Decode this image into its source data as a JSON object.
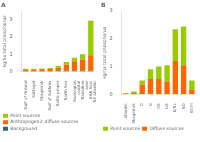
{
  "chart_data": [
    {
      "type": "bar",
      "stacked": true,
      "title": "A",
      "ylabel": "kg/ha total phosphorus",
      "categories": [
        "Gulf of Finland",
        "Kattegat",
        "Skagerrak",
        "Gulf of Bothnia",
        "Baltic proper",
        "North Sea",
        "Norwegian\ncoastal",
        "Transition\nzone",
        "Irish Sea/\nNE Atlantic"
      ],
      "series": [
        {
          "name": "Background",
          "color": "#336666",
          "values": [
            0.03,
            0.03,
            0.03,
            0.03,
            0.04,
            0.05,
            0.05,
            0.05,
            0.05
          ]
        },
        {
          "name": "Anthropogenic diffuse sources",
          "color": "#ff6600",
          "values": [
            0.08,
            0.08,
            0.1,
            0.12,
            0.18,
            0.35,
            0.55,
            0.65,
            0.9
          ]
        },
        {
          "name": "Point sources",
          "color": "#99cc00",
          "values": [
            0.05,
            0.05,
            0.05,
            0.05,
            0.1,
            0.15,
            0.2,
            0.3,
            2.0
          ]
        }
      ],
      "ylim": [
        0,
        3.5
      ],
      "yticks": [
        0,
        1,
        2,
        3
      ],
      "grid": false,
      "legend": "bottom"
    },
    {
      "type": "bar",
      "stacked": true,
      "title": "B",
      "ylabel": "kg/ha total phosphorus",
      "categories": [
        "Atlantic",
        "Skagerrak",
        "D",
        "N",
        "DK",
        "UK",
        "B/NL",
        "NO",
        "SE/FI"
      ],
      "series": [
        {
          "name": "Diffuse sources",
          "color": "#ff6600",
          "values": [
            0.03,
            0.05,
            0.35,
            0.55,
            0.55,
            0.45,
            1.2,
            1.05,
            0.15
          ]
        },
        {
          "name": "Point sources",
          "color": "#99cc00",
          "values": [
            0.02,
            0.05,
            0.15,
            0.35,
            0.45,
            0.6,
            1.15,
            1.4,
            0.35
          ]
        }
      ],
      "ylim": [
        0,
        3.0
      ],
      "yticks": [
        0,
        1,
        2,
        3
      ],
      "grid": false,
      "legend": "bottom"
    }
  ]
}
